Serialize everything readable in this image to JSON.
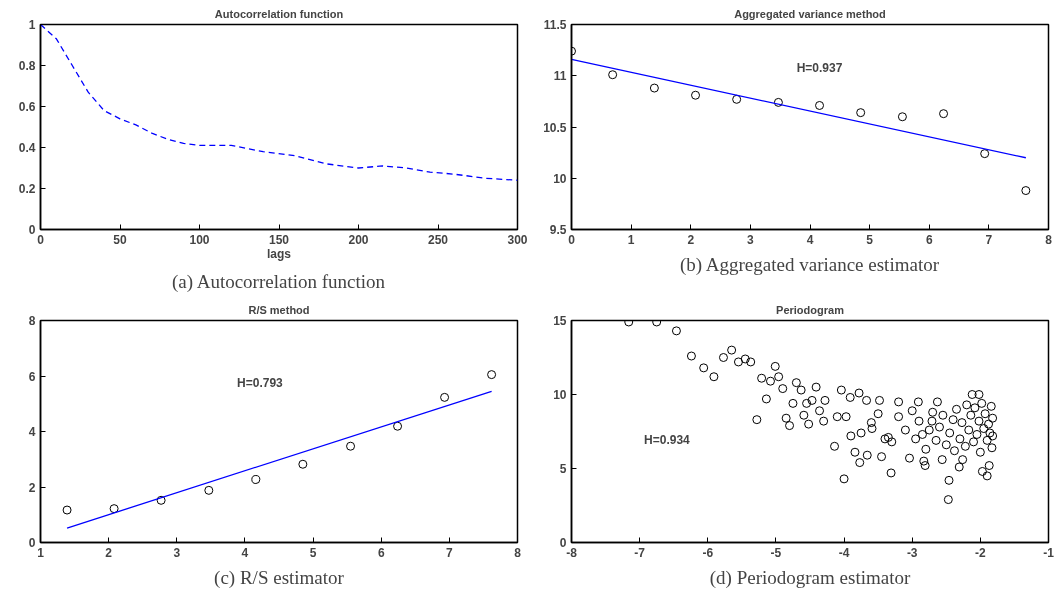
{
  "chart_data": [
    {
      "type": "line",
      "title": "Autocorrelation function",
      "xlabel": "lags",
      "annotations": [
        "(a) Autocorrelation function"
      ],
      "xlim": [
        0,
        300
      ],
      "ylim": [
        0,
        1
      ],
      "xticks": [
        0,
        50,
        100,
        150,
        200,
        250,
        300
      ],
      "yticks": [
        0,
        0.2,
        0.4,
        0.6,
        0.8,
        1
      ],
      "grid": false,
      "series": [
        {
          "color": "#0000ff",
          "line_style": "dashed",
          "marker": "none",
          "x": [
            0,
            10,
            20,
            30,
            40,
            50,
            60,
            70,
            80,
            90,
            100,
            120,
            140,
            160,
            180,
            200,
            215,
            230,
            245,
            260,
            280,
            300
          ],
          "values": [
            1,
            0.93,
            0.8,
            0.67,
            0.58,
            0.54,
            0.51,
            0.47,
            0.44,
            0.42,
            0.41,
            0.41,
            0.38,
            0.36,
            0.32,
            0.3,
            0.31,
            0.3,
            0.28,
            0.27,
            0.25,
            0.24
          ]
        }
      ]
    },
    {
      "type": "scatter",
      "title": "Aggregated variance method",
      "annotations": [
        "H=0.937",
        "(b) Aggregated variance estimator"
      ],
      "xlim": [
        0,
        8
      ],
      "ylim": [
        9.5,
        11.5
      ],
      "xticks": [
        0,
        1,
        2,
        3,
        4,
        5,
        6,
        7,
        8
      ],
      "yticks": [
        9.5,
        10,
        10.5,
        11,
        11.5
      ],
      "grid": false,
      "series": [
        {
          "color": "#000000",
          "marker": "circle",
          "x": [
            0,
            0.69,
            1.39,
            2.08,
            2.77,
            3.47,
            4.16,
            4.85,
            5.55,
            6.24,
            6.93,
            7.62
          ],
          "values": [
            11.24,
            11.01,
            10.88,
            10.81,
            10.77,
            10.74,
            10.71,
            10.64,
            10.6,
            10.63,
            10.24,
            9.88
          ]
        },
        {
          "type": "line",
          "color": "#0000ff",
          "line_style": "solid",
          "marker": "none",
          "x": [
            0,
            7.62
          ],
          "values": [
            11.16,
            10.2
          ]
        }
      ]
    },
    {
      "type": "scatter",
      "title": "R/S method",
      "annotations": [
        "H=0.793",
        "(c) R/S estimator"
      ],
      "xlim": [
        1,
        8
      ],
      "ylim": [
        0,
        8
      ],
      "xticks": [
        1,
        2,
        3,
        4,
        5,
        6,
        7,
        8
      ],
      "yticks": [
        0,
        2,
        4,
        6,
        8
      ],
      "grid": false,
      "series": [
        {
          "color": "#000000",
          "marker": "circle",
          "x": [
            1.39,
            2.08,
            2.77,
            3.47,
            4.16,
            4.85,
            5.55,
            6.24,
            6.93,
            7.62
          ],
          "values": [
            1.17,
            1.22,
            1.52,
            1.88,
            2.27,
            2.82,
            3.47,
            4.19,
            5.23,
            6.05
          ]
        },
        {
          "type": "line",
          "color": "#0000ff",
          "line_style": "solid",
          "marker": "none",
          "x": [
            1.39,
            7.62
          ],
          "values": [
            0.52,
            5.45
          ]
        }
      ]
    },
    {
      "type": "scatter",
      "title": "Periodogram",
      "annotations": [
        "H=0.934",
        "(d) Periodogram estimator"
      ],
      "xlim": [
        -8,
        -1
      ],
      "ylim": [
        0,
        15
      ],
      "xticks": [
        -8,
        -7,
        -6,
        -5,
        -4,
        -3,
        -2,
        -1
      ],
      "yticks": [
        0,
        5,
        10,
        15
      ],
      "grid": false,
      "series": [
        {
          "color": "#000000",
          "marker": "circle",
          "x": [
            -7.16,
            -6.75,
            -6.46,
            -6.24,
            -6.06,
            -5.91,
            -5.77,
            -5.65,
            -5.55,
            -5.45,
            -5.37,
            -5.28,
            -5.21,
            -5.14,
            -5.08,
            -5.01,
            -4.96,
            -4.9,
            -4.85,
            -4.8,
            -4.75,
            -4.7,
            -4.63,
            -4.59,
            -4.55,
            -4.52,
            -4.47,
            -4.41,
            -4.36,
            -4.3,
            -4.28,
            -4.14,
            -4.1,
            -4.04,
            -4.0,
            -3.97,
            -3.91,
            -3.84,
            -3.77,
            -3.78,
            -3.67,
            -3.66,
            -3.59,
            -3.48,
            -3.45,
            -3.31,
            -3.35,
            -3.2,
            -3.04,
            -2.91,
            -2.83,
            -2.81,
            -2.71,
            -2.63,
            -2.56,
            -2.46,
            -2.47,
            -2.31,
            -2.26,
            -2.12,
            -2.02,
            -1.97,
            -1.9,
            -1.87,
            -1.82,
            -3.2,
            -3.1,
            -3.0,
            -2.95,
            -2.9,
            -2.85,
            -2.8,
            -2.75,
            -2.7,
            -2.65,
            -2.6,
            -2.55,
            -2.5,
            -2.45,
            -2.4,
            -2.38,
            -2.35,
            -2.3,
            -2.27,
            -2.22,
            -2.2,
            -2.17,
            -2.14,
            -2.1,
            -2.08,
            -2.05,
            -2.02,
            -2.0,
            -1.98,
            -1.95,
            -1.93,
            -1.9,
            -1.88,
            -1.86,
            -1.84,
            -1.83,
            -1.82,
            -3.4,
            -3.5,
            -3.3,
            -3.6,
            -3.75,
            -3.9
          ],
          "values": [
            14.9,
            14.9,
            14.3,
            12.6,
            11.8,
            11.2,
            12.5,
            13.0,
            12.2,
            12.4,
            12.2,
            8.3,
            11.1,
            9.7,
            10.9,
            11.9,
            11.2,
            10.4,
            8.4,
            7.9,
            9.4,
            10.8,
            10.3,
            8.6,
            9.4,
            8.0,
            9.6,
            10.5,
            8.9,
            8.2,
            9.6,
            6.5,
            8.5,
            10.3,
            4.3,
            8.5,
            9.8,
            6.1,
            5.4,
            10.1,
            9.6,
            5.9,
            7.7,
            9.6,
            5.8,
            4.7,
            7.1,
            9.5,
            5.7,
            9.5,
            5.5,
            5.2,
            8.2,
            9.5,
            5.6,
            4.2,
            2.9,
            5.1,
            5.6,
            10.0,
            10.0,
            4.8,
            4.5,
            5.2,
            7.2,
            8.5,
            7.6,
            8.9,
            7.0,
            8.2,
            7.3,
            6.3,
            7.6,
            8.8,
            6.9,
            7.8,
            8.6,
            6.6,
            7.4,
            8.3,
            6.2,
            9.0,
            7.0,
            8.1,
            6.5,
            9.3,
            7.6,
            8.6,
            6.8,
            9.1,
            7.3,
            8.2,
            6.1,
            9.4,
            7.7,
            8.7,
            6.9,
            8.0,
            7.4,
            9.2,
            6.4,
            8.4,
            7.0,
            8.7,
            6.8,
            8.1,
            7.4,
            7.2
          ]
        }
      ]
    }
  ]
}
